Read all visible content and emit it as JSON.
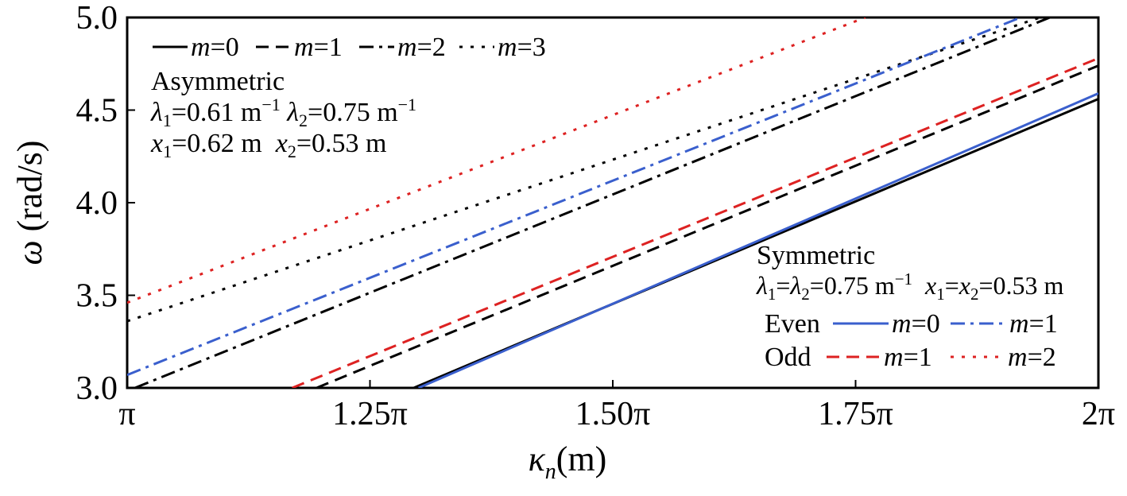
{
  "chart_data": {
    "type": "line",
    "xlabel": {
      "symbol": "κ",
      "sub": "n",
      "unit": "(m)"
    },
    "ylabel": {
      "symbol": "ω",
      "unit": " (rad/s)"
    },
    "xlim": [
      1.0,
      2.0
    ],
    "ylim": [
      3.0,
      5.0
    ],
    "x_ticks": [
      {
        "value": 1.0,
        "label": "π"
      },
      {
        "value": 1.25,
        "label": "1.25π"
      },
      {
        "value": 1.5,
        "label": "1.50π"
      },
      {
        "value": 1.75,
        "label": "1.75π"
      },
      {
        "value": 2.0,
        "label": "2π"
      }
    ],
    "y_ticks": [
      {
        "value": 3.0,
        "label": "3.0"
      },
      {
        "value": 3.5,
        "label": "3.5"
      },
      {
        "value": 4.0,
        "label": "4.0"
      },
      {
        "value": 4.5,
        "label": "4.5"
      },
      {
        "value": 5.0,
        "label": "5.0"
      }
    ],
    "grid": false,
    "x_unit_note": "x values are multiples of π",
    "series": [
      {
        "group": "asymmetric",
        "mode": "m=0",
        "color": "#000000",
        "style": "solid",
        "x": [
          1.295,
          2.0
        ],
        "y": [
          3.0,
          4.56
        ]
      },
      {
        "group": "asymmetric",
        "mode": "m=1",
        "color": "#000000",
        "style": "dashed",
        "x": [
          1.195,
          2.0
        ],
        "y": [
          3.0,
          4.74
        ]
      },
      {
        "group": "asymmetric",
        "mode": "m=2",
        "color": "#000000",
        "style": "dashdot",
        "x": [
          1.008,
          1.95
        ],
        "y": [
          3.0,
          5.0
        ]
      },
      {
        "group": "asymmetric",
        "mode": "m=3",
        "color": "#000000",
        "style": "dotted",
        "x": [
          1.0,
          1.94
        ],
        "y": [
          3.36,
          5.0
        ]
      },
      {
        "group": "symmetric",
        "mode": "Even m=0",
        "color": "#3a5fcd",
        "style": "solid",
        "x": [
          1.3,
          2.0
        ],
        "y": [
          3.0,
          4.59
        ]
      },
      {
        "group": "symmetric",
        "mode": "Even m=1",
        "color": "#3a5fcd",
        "style": "dashdot",
        "x": [
          1.0,
          1.92
        ],
        "y": [
          3.07,
          5.0
        ]
      },
      {
        "group": "symmetric",
        "mode": "Odd m=1",
        "color": "#dd2222",
        "style": "dashed",
        "x": [
          1.17,
          2.0
        ],
        "y": [
          3.0,
          4.78
        ]
      },
      {
        "group": "symmetric",
        "mode": "Odd m=2",
        "color": "#dd2222",
        "style": "dotted",
        "x": [
          1.0,
          1.76
        ],
        "y": [
          3.46,
          5.0
        ]
      }
    ]
  },
  "legend_top": {
    "items": [
      {
        "mvar": "m",
        "eq": "=0",
        "style": "solid",
        "color": "#000000"
      },
      {
        "mvar": "m",
        "eq": "=1",
        "style": "dashed",
        "color": "#000000"
      },
      {
        "mvar": "m",
        "eq": "=2",
        "style": "dashdot",
        "color": "#000000"
      },
      {
        "mvar": "m",
        "eq": "=3",
        "style": "dotted",
        "color": "#000000"
      }
    ],
    "heading": "Asymmetric",
    "params_line1": {
      "l1": "λ",
      "s1": "1",
      "t1": "=0.61 m",
      "e1": "−1",
      "l2": " λ",
      "s2": "2",
      "t2": "=0.75 m",
      "e2": "−1"
    },
    "params_line2": {
      "x1": "x",
      "s1": "1",
      "t1": "=0.62 m  ",
      "x2": "x",
      "s2": "2",
      "t2": "=0.53 m"
    }
  },
  "legend_bottom": {
    "heading": "Symmetric",
    "params": {
      "l1": "λ",
      "s1": "1",
      "eq": "=",
      "l2": "λ",
      "s2": "2",
      "t1": "=0.75 m",
      "e1": "−1",
      "gap": "  ",
      "x1": "x",
      "xs1": "1",
      "xeq": "=",
      "x2": "x",
      "xs2": "2",
      "t2": "=0.53 m"
    },
    "even_label": "Even",
    "odd_label": "Odd",
    "even_items": [
      {
        "mvar": "m",
        "eq": "=0",
        "style": "solid",
        "color": "#3a5fcd"
      },
      {
        "mvar": "m",
        "eq": "=1",
        "style": "dashdot",
        "color": "#3a5fcd"
      }
    ],
    "odd_items": [
      {
        "mvar": "m",
        "eq": "=1",
        "style": "dashed",
        "color": "#dd2222"
      },
      {
        "mvar": "m",
        "eq": "=2",
        "style": "dotted",
        "color": "#dd2222"
      }
    ]
  }
}
